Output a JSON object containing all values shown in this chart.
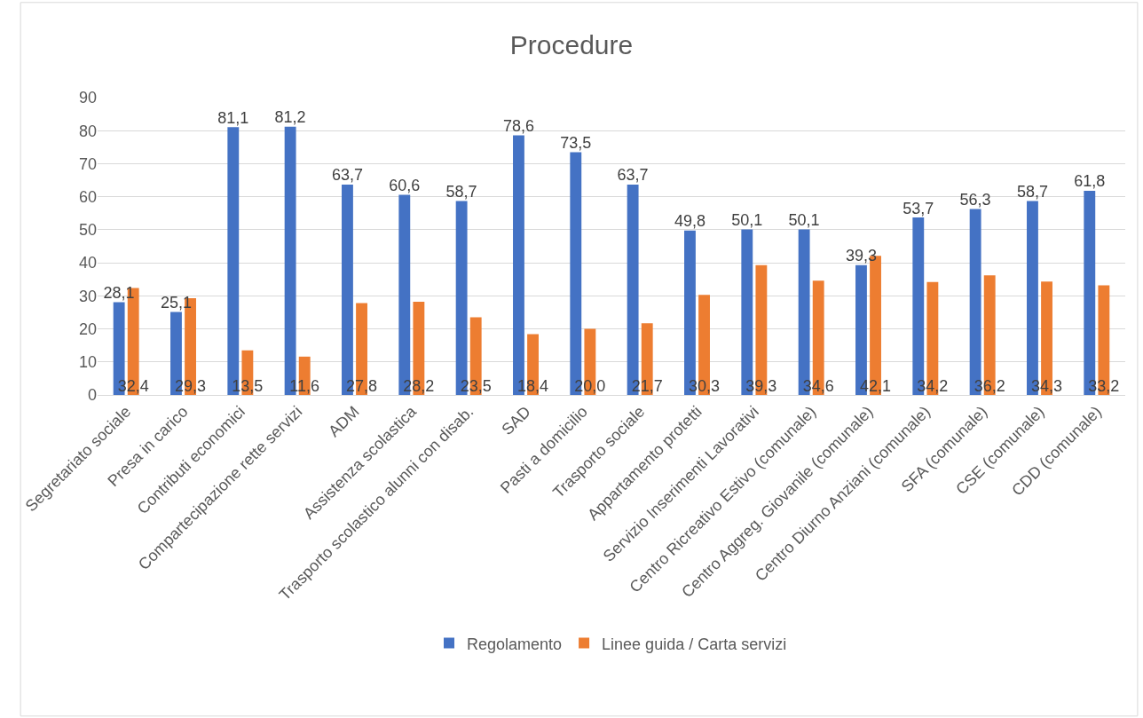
{
  "chart_data": {
    "type": "bar",
    "title": "Procedure",
    "categories": [
      "Segretariato sociale",
      "Presa in carico",
      "Contributi economici",
      "Compartecipazione rette servizi",
      "ADM",
      "Assistenza scolastica",
      "Trasporto scolastico alunni con disab.",
      "SAD",
      "Pasti a domicilio",
      "Trasporto sociale",
      "Appartamento protetti",
      "Servizio Inserimenti Lavorativi",
      "Centro Ricreativo Estivo (comunale)",
      "Centro Aggreg. Giovanile (comunale)",
      "Centro Diurno Anziani (comunale)",
      "SFA (comunale)",
      "CSE (comunale)",
      "CDD (comunale)"
    ],
    "series": [
      {
        "name": "Regolamento",
        "color": "#4472c4",
        "values": [
          28.1,
          25.1,
          81.1,
          81.2,
          63.7,
          60.6,
          58.7,
          78.6,
          73.5,
          63.7,
          49.8,
          50.1,
          50.1,
          39.3,
          53.7,
          56.3,
          58.7,
          61.8
        ],
        "value_labels": [
          "28,1",
          "25,1",
          "81,1",
          "81,2",
          "63,7",
          "60,6",
          "58,7",
          "78,6",
          "73,5",
          "63,7",
          "49,8",
          "50,1",
          "50,1",
          "39,3",
          "53,7",
          "56,3",
          "58,7",
          "61,8"
        ]
      },
      {
        "name": "Linee guida / Carta servizi",
        "color": "#ed7d31",
        "values": [
          32.4,
          29.3,
          13.5,
          11.6,
          27.8,
          28.2,
          23.5,
          18.4,
          20.0,
          21.7,
          30.3,
          39.3,
          34.6,
          42.1,
          34.2,
          36.2,
          34.3,
          33.2
        ],
        "value_labels": [
          "32,4",
          "29,3",
          "13,5",
          "11,6",
          "27,8",
          "28,2",
          "23,5",
          "18,4",
          "20,0",
          "21,7",
          "30,3",
          "39,3",
          "34,6",
          "42,1",
          "34,2",
          "36,2",
          "34,3",
          "33,2"
        ]
      }
    ],
    "ylim": [
      0,
      90
    ],
    "yticks": [
      0,
      10,
      20,
      30,
      40,
      50,
      60,
      70,
      80,
      90
    ],
    "grid": "y",
    "legend": "bottom"
  }
}
